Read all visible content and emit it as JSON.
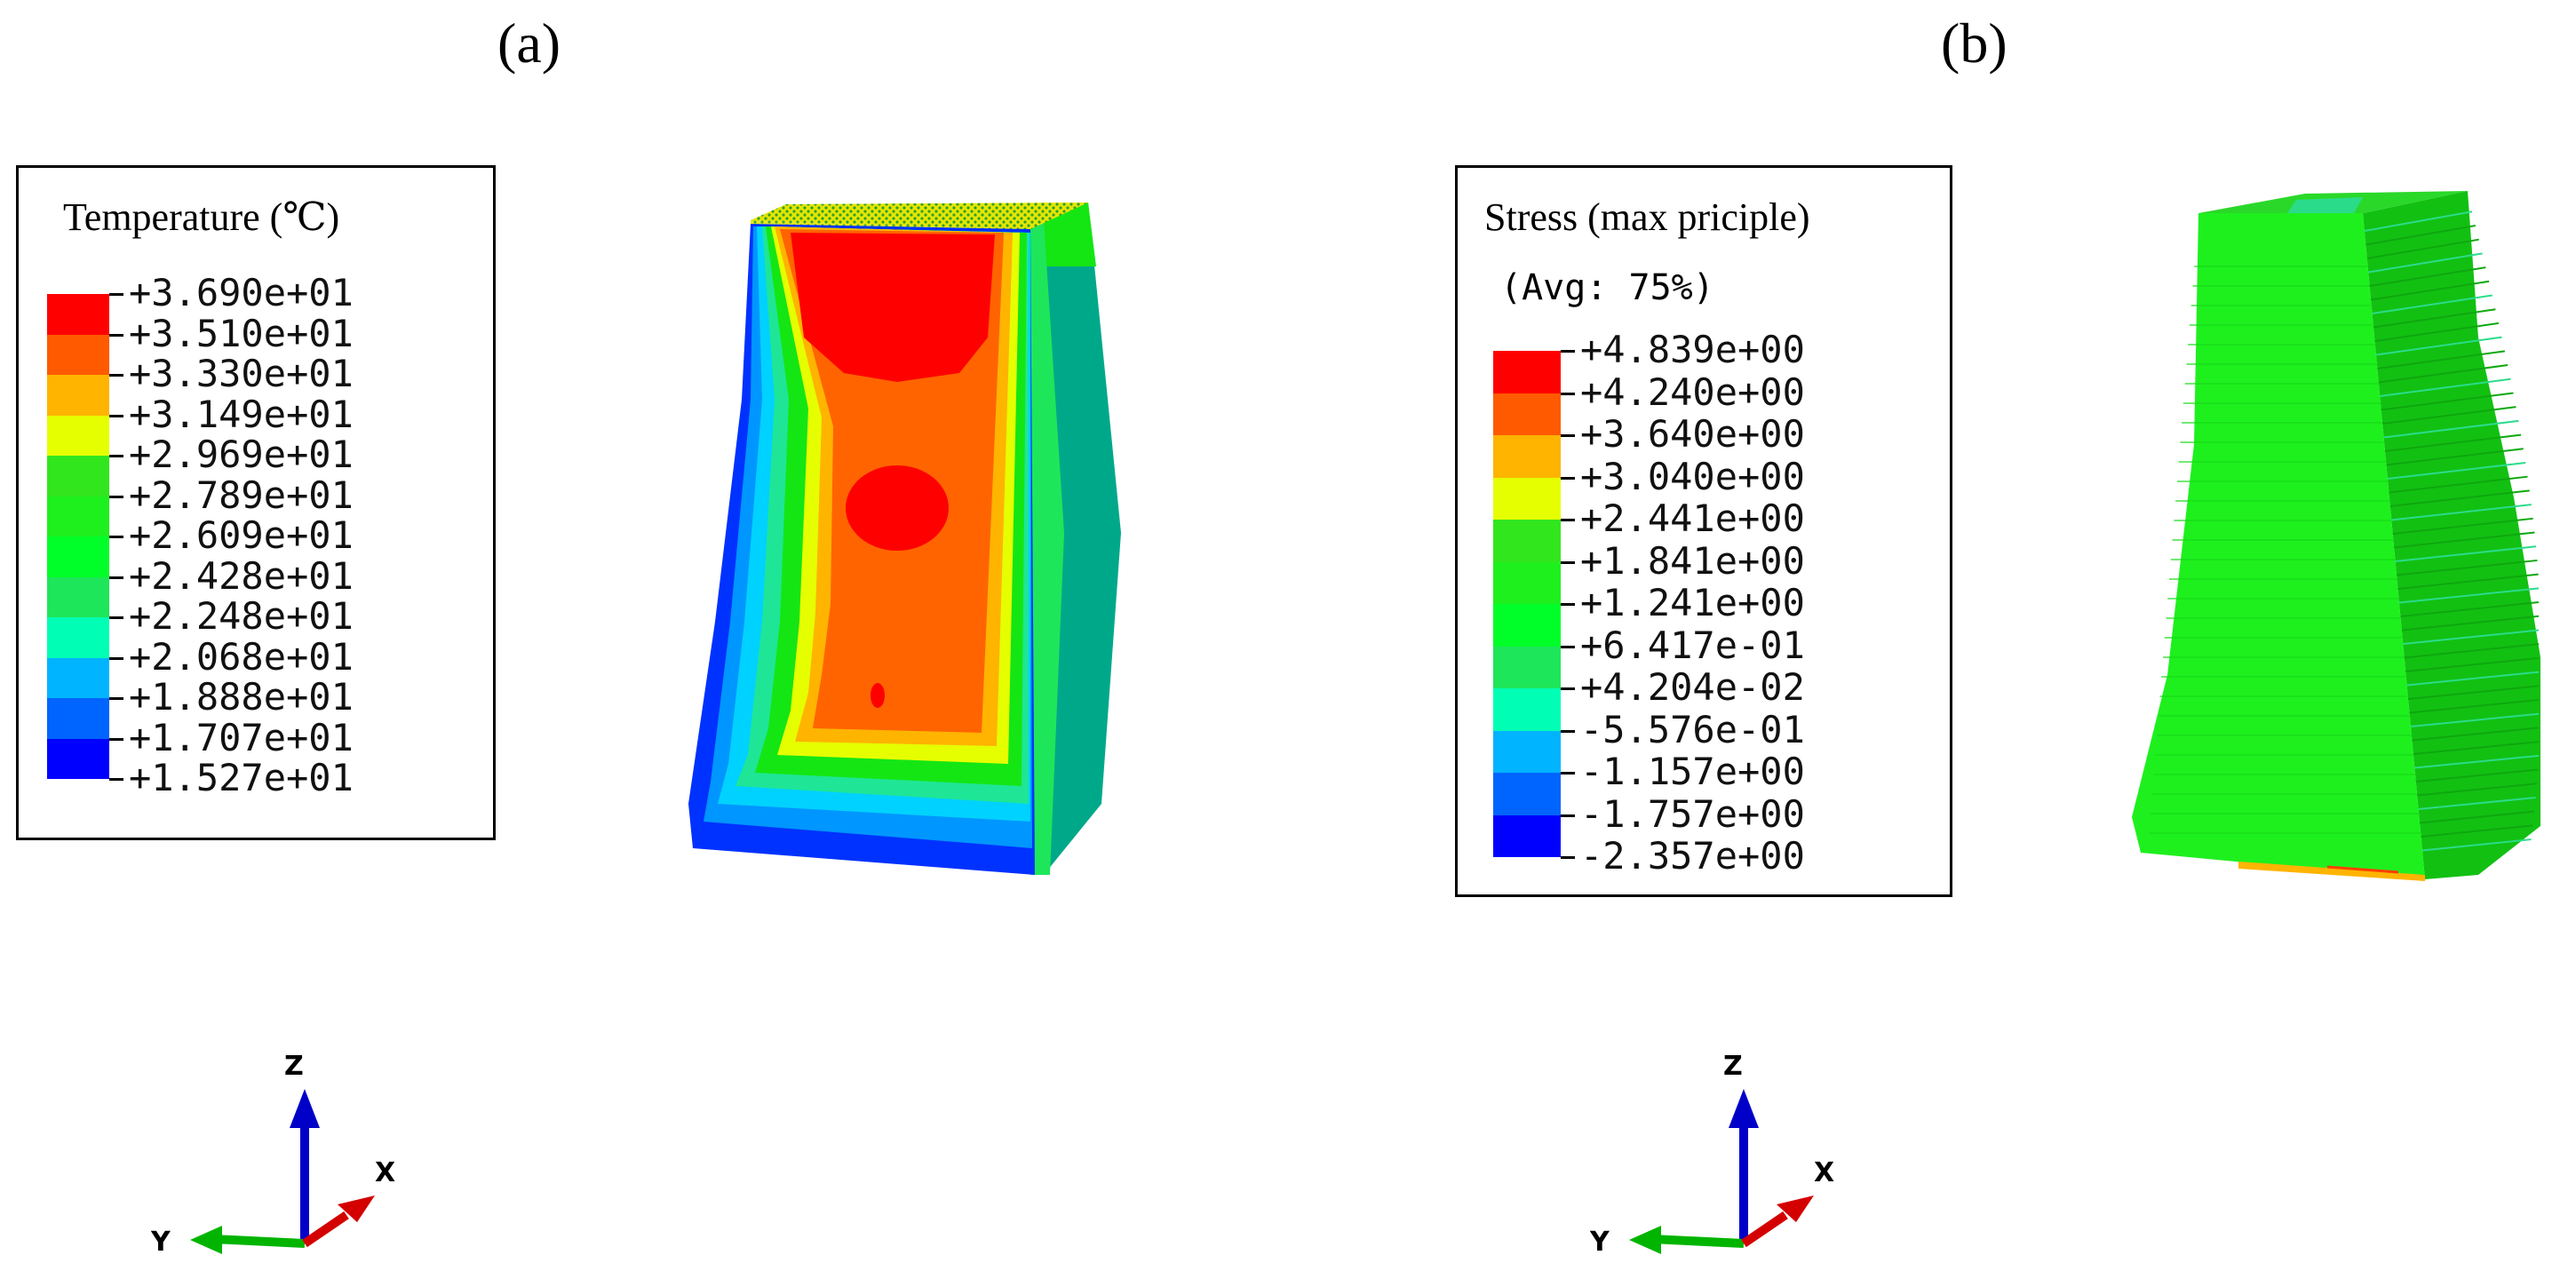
{
  "panel_a": {
    "label": "(a)",
    "legend": {
      "title": "Temperature (℃)",
      "colors": [
        "#ff0000",
        "#ff5a00",
        "#ffb400",
        "#e6ff00",
        "#32e61e",
        "#1ef01e",
        "#00ff28",
        "#1ee65a",
        "#00ffb4",
        "#00b4ff",
        "#0064ff",
        "#0000ff"
      ],
      "values": [
        "+3.690e+01",
        "+3.510e+01",
        "+3.330e+01",
        "+3.149e+01",
        "+2.969e+01",
        "+2.789e+01",
        "+2.609e+01",
        "+2.428e+01",
        "+2.248e+01",
        "+2.068e+01",
        "+1.888e+01",
        "+1.707e+01",
        "+1.527e+01"
      ]
    },
    "triad": {
      "z": "Z",
      "y": "Y",
      "x": "X"
    }
  },
  "panel_b": {
    "label": "(b)",
    "legend": {
      "title": "Stress (max priciple)",
      "subtitle": "(Avg: 75%)",
      "colors": [
        "#ff0000",
        "#ff5a00",
        "#ffb400",
        "#e6ff00",
        "#32e61e",
        "#1ef01e",
        "#00ff28",
        "#1ee65a",
        "#00ffb4",
        "#00b4ff",
        "#0064ff",
        "#0000ff"
      ],
      "values": [
        "+4.839e+00",
        "+4.240e+00",
        "+3.640e+00",
        "+3.040e+00",
        "+2.441e+00",
        "+1.841e+00",
        "+1.241e+00",
        "+6.417e-01",
        "+4.204e-02",
        "-5.576e-01",
        "-1.157e+00",
        "-1.757e+00",
        "-2.357e+00"
      ]
    },
    "triad": {
      "z": "Z",
      "y": "Y",
      "x": "X"
    }
  },
  "colors": {
    "hot": "#ff0000",
    "warm": "#ff6400",
    "mid": "#14e614",
    "cool": "#00a88a",
    "cold": "#0032ff"
  }
}
